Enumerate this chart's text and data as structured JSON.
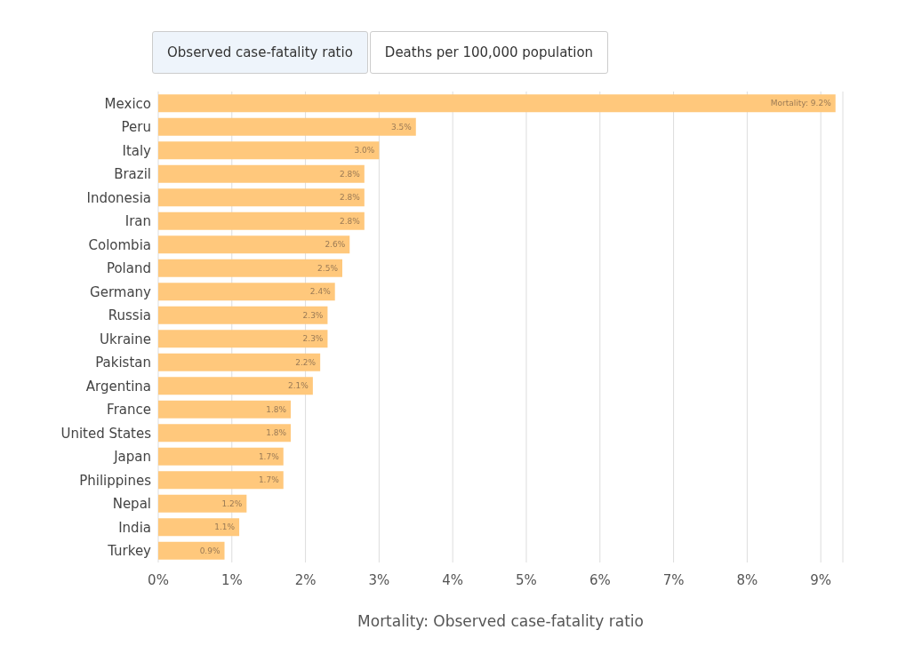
{
  "chart_data": {
    "type": "bar",
    "orientation": "horizontal",
    "xlabel": "Mortality: Observed case-fatality ratio",
    "annotations": [
      "Observed case-fatality ratio",
      "Deaths per 100,000 population"
    ],
    "categories": [
      "Mexico",
      "Peru",
      "Italy",
      "Brazil",
      "Indonesia",
      "Iran",
      "Colombia",
      "Poland",
      "Germany",
      "Russia",
      "Ukraine",
      "Pakistan",
      "Argentina",
      "France",
      "United States",
      "Japan",
      "Philippines",
      "Nepal",
      "India",
      "Turkey"
    ],
    "values": [
      9.2,
      3.5,
      3.0,
      2.8,
      2.8,
      2.8,
      2.6,
      2.5,
      2.4,
      2.3,
      2.3,
      2.2,
      2.1,
      1.8,
      1.8,
      1.7,
      1.7,
      1.2,
      1.1,
      0.9
    ],
    "value_labels": [
      "Mortality: 9.2%",
      "3.5%",
      "3.0%",
      "2.8%",
      "2.8%",
      "2.8%",
      "2.6%",
      "2.5%",
      "2.4%",
      "2.3%",
      "2.3%",
      "2.2%",
      "2.1%",
      "1.8%",
      "1.8%",
      "1.7%",
      "1.7%",
      "1.2%",
      "1.1%",
      "0.9%"
    ],
    "color": "#ffc87c",
    "xlim": [
      0,
      9.3
    ],
    "xticks": [
      {
        "value": 0,
        "label": "0%"
      },
      {
        "value": 1,
        "label": "1%"
      },
      {
        "value": 2,
        "label": "2%"
      },
      {
        "value": 3,
        "label": "3%"
      },
      {
        "value": 4,
        "label": "4%"
      },
      {
        "value": 5,
        "label": "5%"
      },
      {
        "value": 6,
        "label": "6%"
      },
      {
        "value": 7,
        "label": "7%"
      },
      {
        "value": 8,
        "label": "8%"
      },
      {
        "value": 9,
        "label": "9%"
      }
    ],
    "grid": "x"
  }
}
